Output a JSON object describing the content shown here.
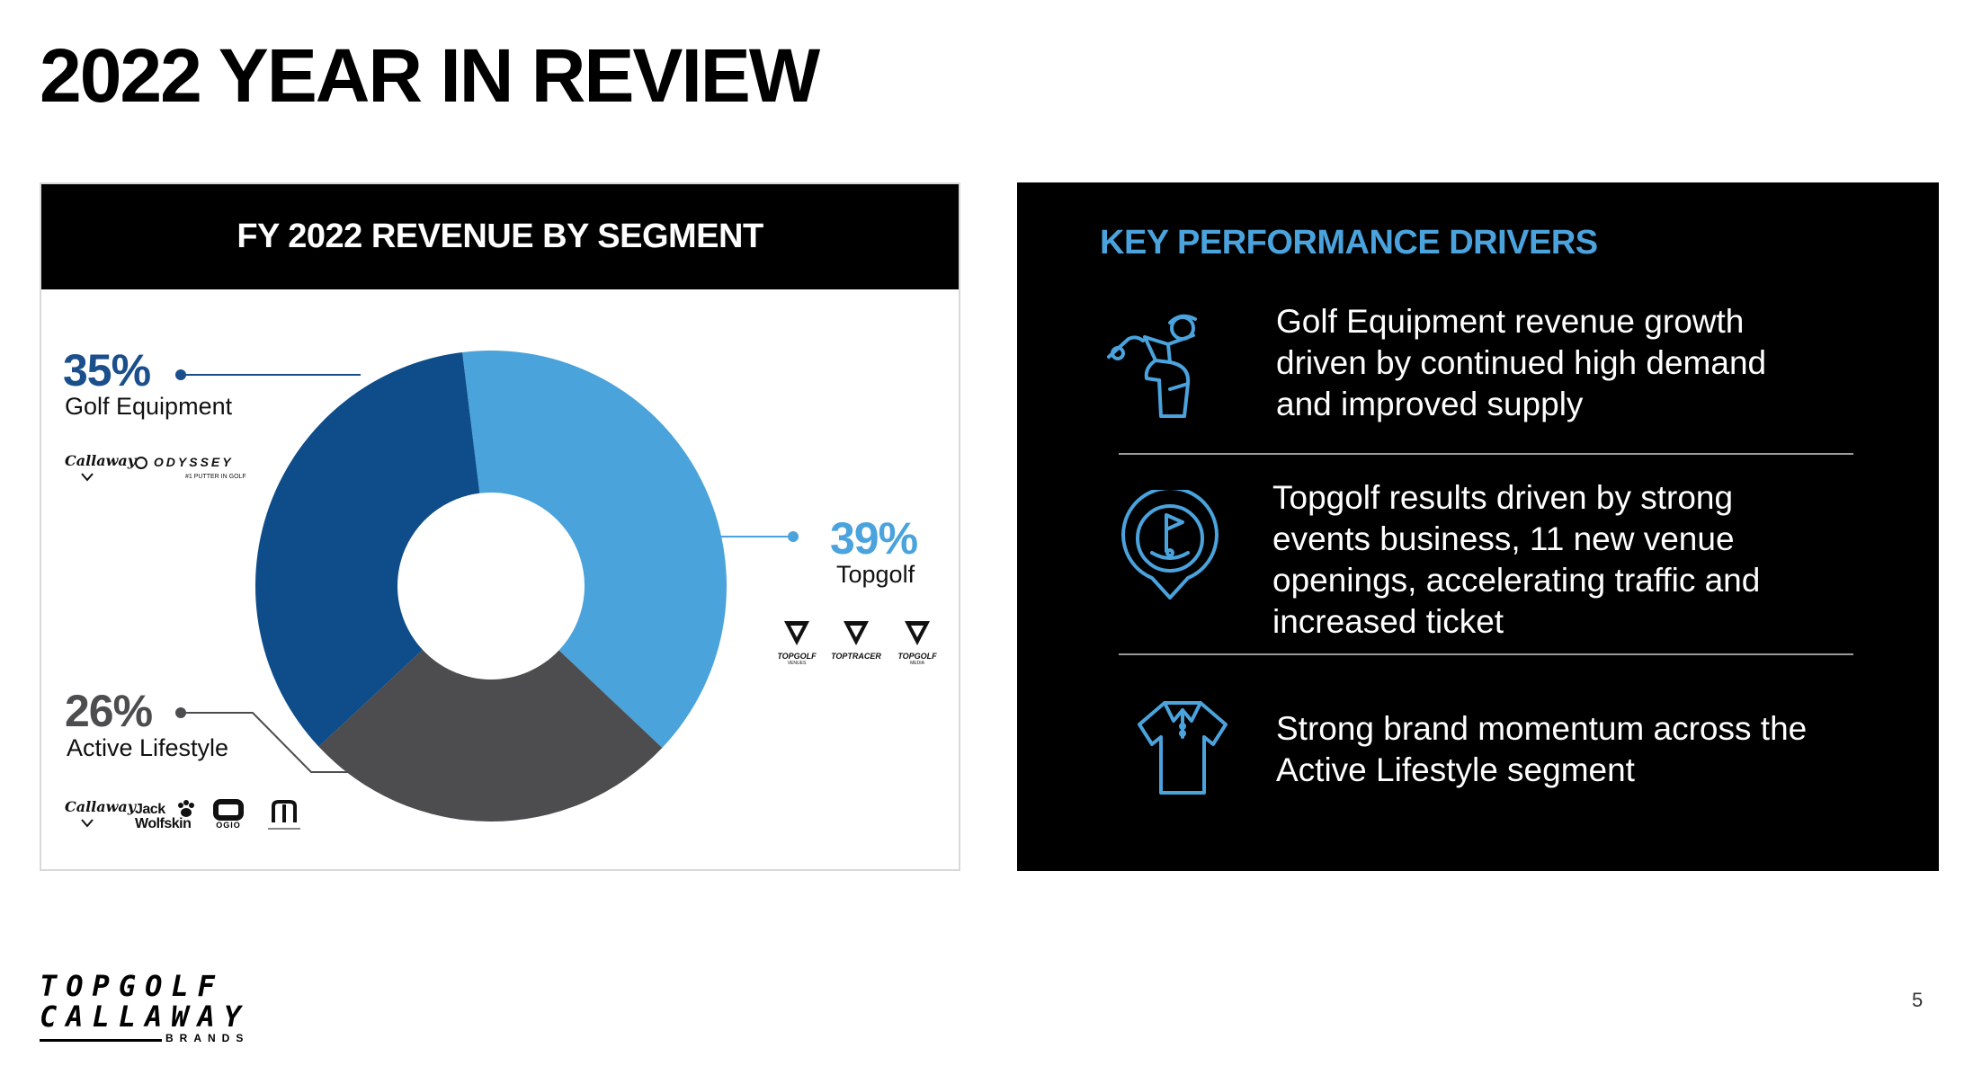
{
  "slide": {
    "title": "2022 YEAR IN REVIEW",
    "page_number": "5"
  },
  "chart_panel": {
    "header": "FY 2022 REVENUE BY SEGMENT"
  },
  "chart_data": {
    "type": "pie",
    "title": "FY 2022 REVENUE BY SEGMENT",
    "donut": true,
    "series": [
      {
        "name": "Topgolf",
        "label": "39%",
        "value": 39,
        "color": "#4aa3da"
      },
      {
        "name": "Active Lifestyle",
        "label": "26%",
        "value": 26,
        "color": "#4d4d4f"
      },
      {
        "name": "Golf Equipment",
        "label": "35%",
        "value": 35,
        "color": "#0f4c8a"
      }
    ]
  },
  "segments": {
    "golf_equipment": {
      "pct": "35%",
      "name": "Golf Equipment",
      "color": "#1a4f8c",
      "brands": [
        "Callaway",
        "ODYSSEY",
        "#1 PUTTER IN GOLF"
      ]
    },
    "topgolf": {
      "pct": "39%",
      "name": "Topgolf",
      "color": "#4aa3dd",
      "brands": [
        "TOPGOLF",
        "TOPTRACER",
        "TOPGOLF",
        "VENUES",
        "MEDIA"
      ]
    },
    "active_lifestyle": {
      "pct": "26%",
      "name": "Active Lifestyle",
      "color": "#4d4d4f",
      "brands": [
        "Callaway",
        "Jack Wolfskin",
        "OGIO"
      ]
    }
  },
  "drivers": {
    "title": "KEY PERFORMANCE DRIVERS",
    "accent_color": "#4aa3dd",
    "items": [
      {
        "icon": "golfer-icon",
        "lines": [
          "Golf Equipment revenue growth",
          "driven by continued high demand",
          "and improved supply"
        ]
      },
      {
        "icon": "topgolf-pin-icon",
        "lines": [
          "Topgolf results driven by strong",
          "events business, 11 new venue",
          "openings, accelerating traffic and",
          "increased ticket"
        ]
      },
      {
        "icon": "polo-shirt-icon",
        "lines": [
          "Strong brand momentum across the",
          "Active Lifestyle segment"
        ]
      }
    ]
  },
  "footer": {
    "logo_line1": "TOPGOLF",
    "logo_line2": "CALLAWAY",
    "logo_line3": "BRANDS"
  }
}
